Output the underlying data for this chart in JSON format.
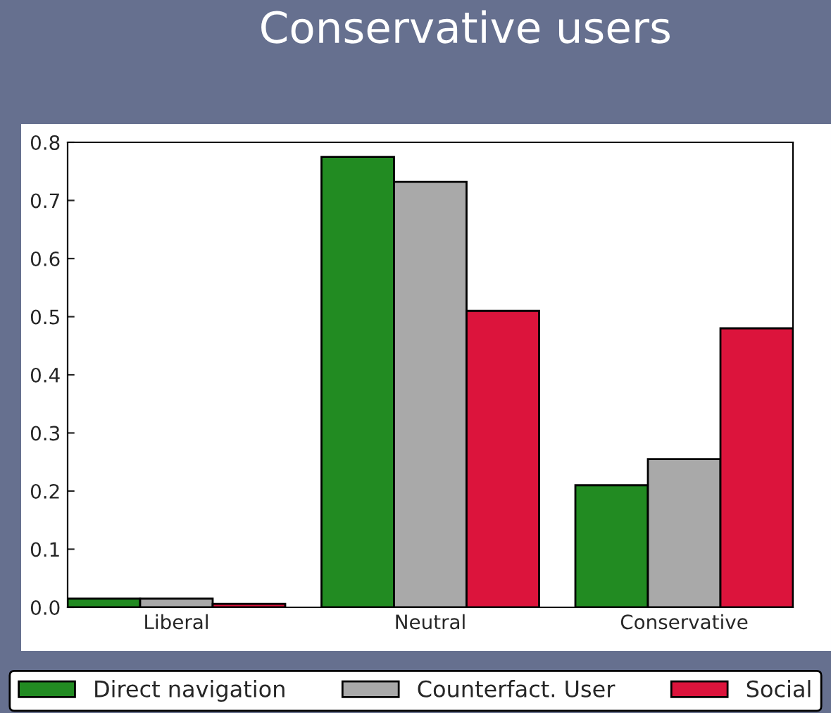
{
  "chart_data": {
    "type": "bar",
    "title": "Conservative users",
    "categories": [
      "Liberal",
      "Neutral",
      "Conservative"
    ],
    "series": [
      {
        "name": "Direct navigation",
        "color": "#228b22",
        "values": [
          0.015,
          0.775,
          0.21
        ]
      },
      {
        "name": "Counterfact. User",
        "color": "#a9a9a9",
        "values": [
          0.015,
          0.732,
          0.255
        ]
      },
      {
        "name": "Social",
        "color": "#dc143c",
        "values": [
          0.006,
          0.51,
          0.48
        ]
      }
    ],
    "ylim": [
      0,
      0.8
    ],
    "yticks": [
      {
        "value": 0,
        "label": "0.0"
      },
      0.1,
      0.2,
      0.3,
      0.4,
      0.5,
      0.6,
      0.7,
      0.8
    ],
    "grid": false,
    "legend": "bottom"
  }
}
